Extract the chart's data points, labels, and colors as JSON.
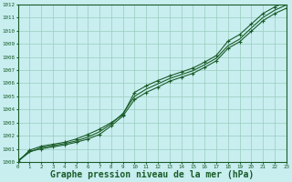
{
  "background_color": "#c8eef0",
  "plot_bg_color": "#c8eef0",
  "grid_color": "#99ccbb",
  "line_color": "#1a5c28",
  "xlabel": "Graphe pression niveau de la mer (hPa)",
  "xlabel_fontsize": 7,
  "ylabel_ticks": [
    1000,
    1001,
    1002,
    1003,
    1004,
    1005,
    1006,
    1007,
    1008,
    1009,
    1010,
    1011,
    1012
  ],
  "xticks": [
    0,
    1,
    2,
    3,
    4,
    5,
    6,
    7,
    8,
    9,
    10,
    11,
    12,
    13,
    14,
    15,
    16,
    17,
    18,
    19,
    20,
    21,
    22,
    23
  ],
  "xlim": [
    0,
    23
  ],
  "ylim": [
    1000,
    1012
  ],
  "series": [
    {
      "y": [
        1000.0,
        1000.9,
        1001.2,
        1001.35,
        1001.5,
        1001.75,
        1002.1,
        1002.5,
        1003.0,
        1003.6,
        1005.3,
        1005.8,
        1006.2,
        1006.55,
        1006.85,
        1007.15,
        1007.6,
        1008.1,
        1009.2,
        1009.7,
        1010.5,
        1011.3,
        1011.8,
        1012.2
      ],
      "marker": true,
      "lw": 0.8
    },
    {
      "y": [
        1000.05,
        1000.75,
        1001.1,
        1001.25,
        1001.4,
        1001.6,
        1001.9,
        1002.3,
        1002.9,
        1003.7,
        1005.0,
        1005.55,
        1005.95,
        1006.35,
        1006.65,
        1006.95,
        1007.4,
        1007.9,
        1008.85,
        1009.35,
        1010.2,
        1011.0,
        1011.55,
        1011.95
      ],
      "marker": false,
      "lw": 0.8
    },
    {
      "y": [
        1000.1,
        1000.8,
        1001.0,
        1001.15,
        1001.3,
        1001.5,
        1001.75,
        1002.1,
        1002.75,
        1003.5,
        1004.75,
        1005.3,
        1005.7,
        1006.15,
        1006.45,
        1006.75,
        1007.2,
        1007.7,
        1008.65,
        1009.15,
        1009.95,
        1010.75,
        1011.3,
        1011.7
      ],
      "marker": true,
      "lw": 0.8
    }
  ]
}
